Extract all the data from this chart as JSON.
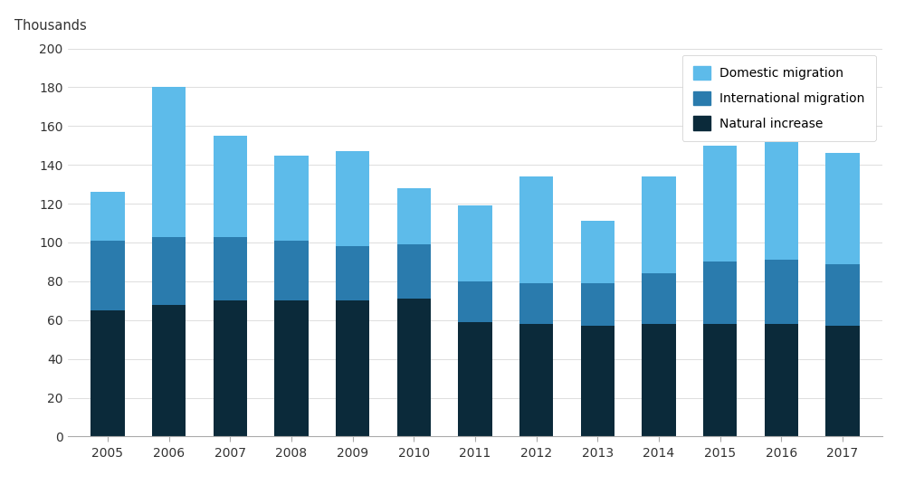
{
  "years": [
    2005,
    2006,
    2007,
    2008,
    2009,
    2010,
    2011,
    2012,
    2013,
    2014,
    2015,
    2016,
    2017
  ],
  "natural_increase": [
    65,
    68,
    70,
    70,
    70,
    71,
    59,
    58,
    57,
    58,
    58,
    58,
    57
  ],
  "international_migration": [
    36,
    35,
    33,
    31,
    28,
    28,
    21,
    21,
    22,
    26,
    32,
    33,
    32
  ],
  "domestic_migration": [
    25,
    77,
    52,
    44,
    49,
    29,
    39,
    55,
    32,
    50,
    60,
    61,
    57
  ],
  "color_domestic": "#5DBBEA",
  "color_international": "#2A7BAD",
  "color_natural": "#0B2A3A",
  "ylim": [
    0,
    200
  ],
  "yticks": [
    0,
    20,
    40,
    60,
    80,
    100,
    120,
    140,
    160,
    180,
    200
  ],
  "ylabel": "Thousands",
  "legend_labels": [
    "Domestic migration",
    "International migration",
    "Natural increase"
  ],
  "background_color": "#ffffff",
  "bar_width": 0.55
}
